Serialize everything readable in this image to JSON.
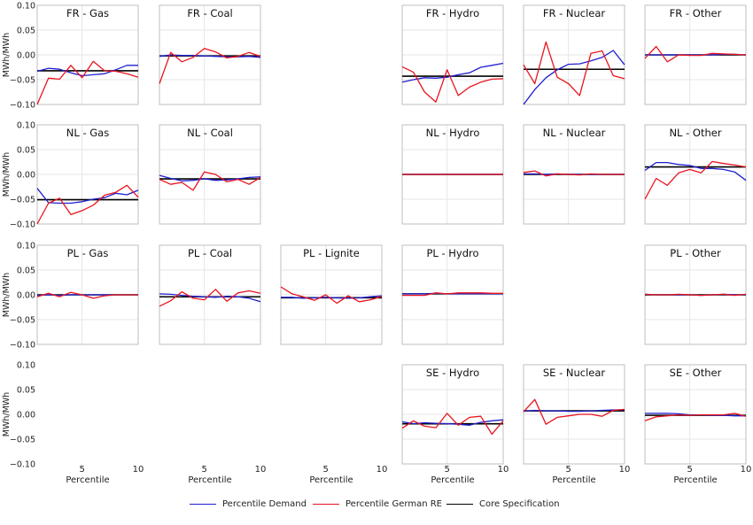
{
  "colors": {
    "demand": "#1f1fd0",
    "re": "#e8141e",
    "core": "#000000",
    "frame": "#bfbfbf",
    "grid": "#e6e6e6"
  },
  "legend": {
    "demand": "Percentile Demand",
    "re": "Percentile German RE",
    "core": "Core Specification",
    "placement": "bottom-center"
  },
  "chart_data": {
    "type": "line",
    "grid": true,
    "ylabel": "MWh/MWh",
    "xlabel": "Percentile",
    "ylim": [
      -0.1,
      0.1
    ],
    "yticks": [
      -0.1,
      -0.05,
      0.0,
      0.05,
      0.1
    ],
    "ytick_labels": [
      "−0.10",
      "−0.05",
      "0.00",
      "0.05",
      "0.10"
    ],
    "xlim": [
      1,
      10
    ],
    "xticks": [
      5,
      10
    ],
    "x": [
      1,
      2,
      3,
      4,
      5,
      6,
      7,
      8,
      9,
      10
    ],
    "rows": [
      "FR",
      "NL",
      "PL",
      "SE"
    ],
    "cols": [
      "Gas",
      "Coal",
      "Lignite",
      "Hydro",
      "Nuclear",
      "Other"
    ],
    "panels": [
      {
        "title": "FR - Gas",
        "row": 0,
        "col": 0,
        "core": -0.032,
        "demand": [
          -0.033,
          -0.027,
          -0.029,
          -0.036,
          -0.042,
          -0.04,
          -0.038,
          -0.03,
          -0.021,
          -0.021
        ],
        "re": [
          -0.1,
          -0.047,
          -0.049,
          -0.021,
          -0.046,
          -0.013,
          -0.032,
          -0.033,
          -0.038,
          -0.045
        ]
      },
      {
        "title": "FR - Coal",
        "row": 0,
        "col": 1,
        "core": -0.002,
        "demand": [
          -0.003,
          0.0,
          -0.001,
          -0.001,
          -0.002,
          -0.003,
          -0.004,
          -0.004,
          -0.003,
          -0.005
        ],
        "re": [
          -0.058,
          0.005,
          -0.014,
          -0.005,
          0.013,
          0.006,
          -0.006,
          -0.003,
          0.005,
          -0.003
        ]
      },
      {
        "title": "FR - Hydro",
        "row": 0,
        "col": 3,
        "core": -0.043,
        "demand": [
          -0.055,
          -0.05,
          -0.046,
          -0.047,
          -0.045,
          -0.04,
          -0.036,
          -0.025,
          -0.021,
          -0.017
        ],
        "re": [
          -0.024,
          -0.035,
          -0.075,
          -0.095,
          -0.03,
          -0.082,
          -0.065,
          -0.055,
          -0.049,
          -0.048
        ]
      },
      {
        "title": "FR - Nuclear",
        "row": 0,
        "col": 4,
        "core": -0.029,
        "demand": [
          -0.1,
          -0.07,
          -0.046,
          -0.03,
          -0.019,
          -0.018,
          -0.012,
          -0.005,
          0.009,
          -0.02
        ],
        "re": [
          -0.02,
          -0.058,
          0.026,
          -0.045,
          -0.058,
          -0.082,
          0.003,
          0.008,
          -0.042,
          -0.048
        ]
      },
      {
        "title": "FR - Other",
        "row": 0,
        "col": 5,
        "core": 0.0,
        "demand": [
          0.0,
          0.0,
          0.0,
          0.0,
          0.0,
          0.0,
          0.0,
          0.001,
          0.001,
          0.0
        ],
        "re": [
          -0.007,
          0.017,
          -0.014,
          0.0,
          -0.001,
          -0.001,
          0.003,
          0.002,
          0.001,
          0.0
        ]
      },
      {
        "title": "NL - Gas",
        "row": 1,
        "col": 0,
        "core": -0.051,
        "demand": [
          -0.028,
          -0.057,
          -0.058,
          -0.058,
          -0.055,
          -0.05,
          -0.047,
          -0.038,
          -0.041,
          -0.032
        ],
        "re": [
          -0.1,
          -0.058,
          -0.048,
          -0.081,
          -0.073,
          -0.062,
          -0.042,
          -0.036,
          -0.022,
          -0.046
        ]
      },
      {
        "title": "NL - Coal",
        "row": 1,
        "col": 1,
        "core": -0.009,
        "demand": [
          -0.002,
          -0.008,
          -0.013,
          -0.012,
          -0.009,
          -0.012,
          -0.011,
          -0.009,
          -0.006,
          -0.005
        ],
        "re": [
          -0.01,
          -0.02,
          -0.016,
          -0.032,
          0.005,
          0.0,
          -0.015,
          -0.01,
          -0.02,
          -0.006
        ]
      },
      {
        "title": "NL - Hydro",
        "row": 1,
        "col": 3,
        "core": 0.0,
        "demand": [
          0.0,
          0.0,
          0.0,
          0.0,
          0.0,
          0.0,
          0.0,
          0.0,
          0.0,
          0.0
        ],
        "re": [
          0.0,
          0.0,
          0.0,
          0.0,
          0.0,
          0.0,
          0.0,
          0.0,
          0.0,
          0.0
        ]
      },
      {
        "title": "NL - Nuclear",
        "row": 1,
        "col": 4,
        "core": 0.0,
        "demand": [
          0.001,
          0.001,
          0.0,
          0.001,
          0.0,
          0.0,
          0.0,
          0.0,
          0.0,
          0.0
        ],
        "re": [
          0.004,
          0.007,
          -0.003,
          0.001,
          0.0,
          -0.001,
          0.001,
          0.0,
          0.0,
          0.0
        ]
      },
      {
        "title": "NL - Other",
        "row": 1,
        "col": 5,
        "core": 0.015,
        "demand": [
          0.008,
          0.024,
          0.024,
          0.02,
          0.018,
          0.012,
          0.012,
          0.01,
          0.005,
          -0.012
        ],
        "re": [
          -0.05,
          -0.008,
          -0.022,
          0.003,
          0.01,
          0.003,
          0.026,
          0.022,
          0.019,
          0.015
        ]
      },
      {
        "title": "PL - Gas",
        "row": 2,
        "col": 0,
        "core": 0.0,
        "demand": [
          -0.001,
          0.0,
          -0.001,
          0.0,
          0.0,
          0.0,
          0.0,
          0.0,
          0.0,
          0.0
        ],
        "re": [
          -0.004,
          0.003,
          -0.004,
          0.005,
          0.0,
          -0.007,
          -0.002,
          0.0,
          0.0,
          0.0
        ]
      },
      {
        "title": "PL - Coal",
        "row": 2,
        "col": 1,
        "core": -0.004,
        "demand": [
          0.002,
          0.001,
          -0.001,
          -0.003,
          -0.004,
          -0.005,
          -0.003,
          -0.004,
          -0.007,
          -0.014
        ],
        "re": [
          -0.023,
          -0.012,
          0.006,
          -0.007,
          -0.01,
          0.011,
          -0.013,
          0.004,
          0.008,
          0.003
        ]
      },
      {
        "title": "PL - Lignite",
        "row": 2,
        "col": 2,
        "core": -0.006,
        "demand": [
          -0.005,
          -0.005,
          -0.007,
          -0.006,
          -0.005,
          -0.006,
          -0.007,
          -0.006,
          -0.004,
          -0.002
        ],
        "re": [
          0.016,
          0.002,
          -0.004,
          -0.011,
          0.0,
          -0.017,
          -0.002,
          -0.014,
          -0.01,
          -0.003
        ]
      },
      {
        "title": "PL - Hydro",
        "row": 2,
        "col": 3,
        "core": 0.002,
        "demand": [
          0.002,
          0.002,
          0.002,
          0.003,
          0.002,
          0.002,
          0.002,
          0.002,
          0.002,
          0.002
        ],
        "re": [
          -0.001,
          -0.001,
          -0.001,
          0.004,
          0.002,
          0.004,
          0.004,
          0.004,
          0.003,
          0.003
        ]
      },
      {
        "title": "PL - Other",
        "row": 2,
        "col": 5,
        "core": 0.0,
        "demand": [
          0.001,
          0.0,
          0.0,
          0.0,
          0.0,
          -0.001,
          0.0,
          0.001,
          0.0,
          0.0
        ],
        "re": [
          0.001,
          0.0,
          0.0,
          0.001,
          0.0,
          -0.001,
          0.0,
          0.001,
          -0.001,
          0.001
        ]
      },
      {
        "title": "SE - Hydro",
        "row": 3,
        "col": 3,
        "core": -0.019,
        "demand": [
          -0.015,
          -0.019,
          -0.017,
          -0.018,
          -0.019,
          -0.02,
          -0.022,
          -0.016,
          -0.013,
          -0.011
        ],
        "re": [
          -0.028,
          -0.013,
          -0.024,
          -0.027,
          0.002,
          -0.022,
          -0.006,
          -0.004,
          -0.04,
          -0.013
        ]
      },
      {
        "title": "SE - Nuclear",
        "row": 3,
        "col": 4,
        "core": 0.007,
        "demand": [
          0.006,
          0.008,
          0.007,
          0.007,
          0.006,
          0.006,
          0.007,
          0.008,
          0.009,
          0.009
        ],
        "re": [
          0.005,
          0.03,
          -0.02,
          -0.006,
          -0.003,
          0.0,
          0.0,
          -0.004,
          0.008,
          0.01
        ]
      },
      {
        "title": "SE - Other",
        "row": 3,
        "col": 5,
        "core": -0.002,
        "demand": [
          0.002,
          0.002,
          0.002,
          0.001,
          -0.001,
          -0.001,
          -0.002,
          -0.002,
          -0.003,
          -0.003
        ],
        "re": [
          -0.013,
          -0.005,
          -0.003,
          -0.001,
          -0.002,
          -0.001,
          -0.001,
          -0.001,
          0.002,
          -0.004
        ]
      }
    ]
  }
}
